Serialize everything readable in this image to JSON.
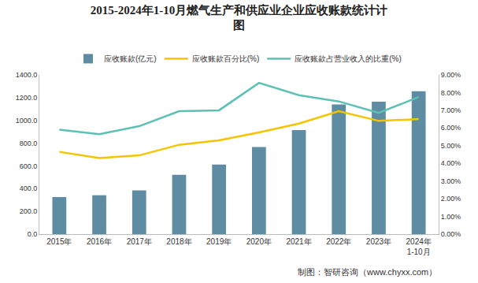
{
  "chart_data": {
    "type": "bar",
    "title": "2015-2024年1-10月燃气生产和供应业企业应收账款统计计\n图",
    "source": "制图：智研咨询（www.chyxx.com）",
    "categories": [
      "2015年",
      "2016年",
      "2017年",
      "2018年",
      "2019年",
      "2020年",
      "2021年",
      "2022年",
      "2023年",
      "2024年\n1-10月"
    ],
    "series": [
      {
        "name": "应收账款(亿元)",
        "type": "bar",
        "color": "#5e8ca3",
        "values": [
          326,
          342,
          385,
          522,
          612,
          765,
          915,
          1140,
          1165,
          1257
        ]
      },
      {
        "name": "应收账款百分比(%)",
        "type": "line",
        "axis": "y2",
        "color": "#f5c400",
        "values": [
          4.65,
          4.3,
          4.45,
          5.05,
          5.3,
          5.75,
          6.25,
          6.95,
          6.4,
          6.5
        ]
      },
      {
        "name": "应收账款占营业收入的比重(%)",
        "type": "line",
        "axis": "y2",
        "color": "#5cc0b4",
        "values": [
          5.9,
          5.65,
          6.1,
          6.95,
          7.0,
          8.55,
          7.85,
          7.5,
          6.85,
          7.75
        ]
      }
    ],
    "ylim": [
      0,
      1400
    ],
    "yticks": [
      {
        "value": 0,
        "label": "0.0"
      },
      {
        "value": 200,
        "label": "200.0"
      },
      {
        "value": 400,
        "label": "400.0"
      },
      {
        "value": 600,
        "label": "600.0"
      },
      {
        "value": 800,
        "label": "800.0"
      },
      {
        "value": 1000,
        "label": "1000.0"
      },
      {
        "value": 1200,
        "label": "1200.0"
      },
      {
        "value": 1400,
        "label": "1400.0"
      }
    ],
    "y2lim": [
      0,
      9
    ],
    "y2ticks": [
      {
        "value": 0,
        "label": "0.00%"
      },
      {
        "value": 1,
        "label": "1.00%"
      },
      {
        "value": 2,
        "label": "2.00%"
      },
      {
        "value": 3,
        "label": "3.00%"
      },
      {
        "value": 4,
        "label": "4.00%"
      },
      {
        "value": 5,
        "label": "5.00%"
      },
      {
        "value": 6,
        "label": "6.00%"
      },
      {
        "value": 7,
        "label": "7.00%"
      },
      {
        "value": 8,
        "label": "8.00%"
      },
      {
        "value": 9,
        "label": "9.00%"
      }
    ],
    "grid": false,
    "legend": "top"
  }
}
